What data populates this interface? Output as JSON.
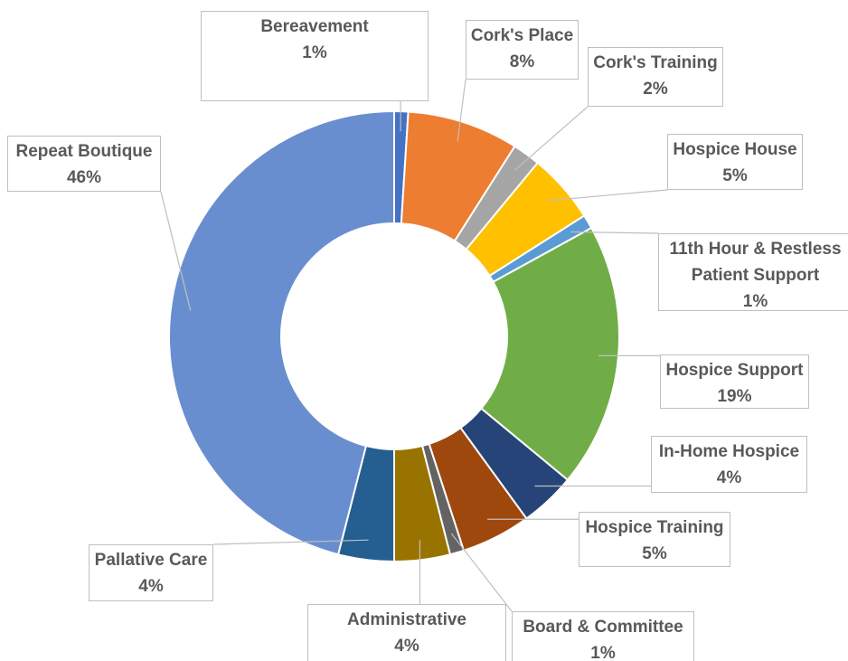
{
  "chart_data": {
    "type": "donut",
    "categories": [
      "Bereavement",
      "Cork's Place",
      "Cork's Training",
      "Hospice House",
      "11th Hour & Restless Patient Support",
      "Hospice Support",
      "In-Home Hospice",
      "Hospice Training",
      "Board & Committee",
      "Administrative",
      "Pallative Care",
      "Repeat Boutique"
    ],
    "values": [
      1,
      8,
      2,
      5,
      1,
      19,
      4,
      5,
      1,
      4,
      4,
      46
    ],
    "value_labels": [
      "1%",
      "8%",
      "2%",
      "5%",
      "1%",
      "19%",
      "4%",
      "5%",
      "1%",
      "4%",
      "4%",
      "46%"
    ],
    "colors": [
      "#4472c4",
      "#ed7d31",
      "#a5a5a5",
      "#ffc000",
      "#5b9bd5",
      "#70ad47",
      "#264478",
      "#9e480e",
      "#636363",
      "#997300",
      "#255e91",
      "#698ed0"
    ]
  }
}
